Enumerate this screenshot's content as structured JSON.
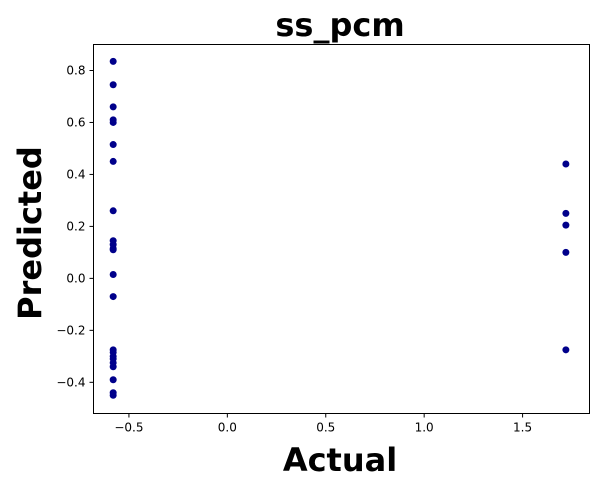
{
  "chart_data": {
    "type": "scatter",
    "title": "ss_pcm",
    "xlabel": "Actual",
    "ylabel": "Predicted",
    "xlim": [
      -0.68,
      1.84
    ],
    "ylim": [
      -0.52,
      0.9
    ],
    "xticks": [
      -0.5,
      0.0,
      0.5,
      1.0,
      1.5
    ],
    "xtick_labels": [
      "−0.5",
      "0.0",
      "0.5",
      "1.0",
      "1.5"
    ],
    "yticks": [
      -0.4,
      -0.2,
      0.0,
      0.2,
      0.4,
      0.6,
      0.8
    ],
    "ytick_labels": [
      "−0.4",
      "−0.2",
      "0.0",
      "0.2",
      "0.4",
      "0.6",
      "0.8"
    ],
    "grid": false,
    "marker_color": "#00008b",
    "series": [
      {
        "points": [
          [
            -0.58,
            0.835
          ],
          [
            -0.58,
            0.745
          ],
          [
            -0.58,
            0.66
          ],
          [
            -0.58,
            0.61
          ],
          [
            -0.58,
            0.6
          ],
          [
            -0.58,
            0.515
          ],
          [
            -0.58,
            0.45
          ],
          [
            -0.58,
            0.26
          ],
          [
            -0.58,
            0.145
          ],
          [
            -0.58,
            0.13
          ],
          [
            -0.58,
            0.115
          ],
          [
            -0.58,
            0.11
          ],
          [
            -0.58,
            0.015
          ],
          [
            -0.58,
            -0.07
          ],
          [
            -0.58,
            -0.275
          ],
          [
            -0.58,
            -0.285
          ],
          [
            -0.58,
            -0.3
          ],
          [
            -0.58,
            -0.31
          ],
          [
            -0.58,
            -0.325
          ],
          [
            -0.58,
            -0.34
          ],
          [
            -0.58,
            -0.39
          ],
          [
            -0.58,
            -0.44
          ],
          [
            -0.58,
            -0.45
          ],
          [
            1.72,
            0.44
          ],
          [
            1.72,
            0.25
          ],
          [
            1.72,
            0.205
          ],
          [
            1.72,
            0.1
          ],
          [
            1.72,
            -0.275
          ]
        ]
      }
    ]
  }
}
